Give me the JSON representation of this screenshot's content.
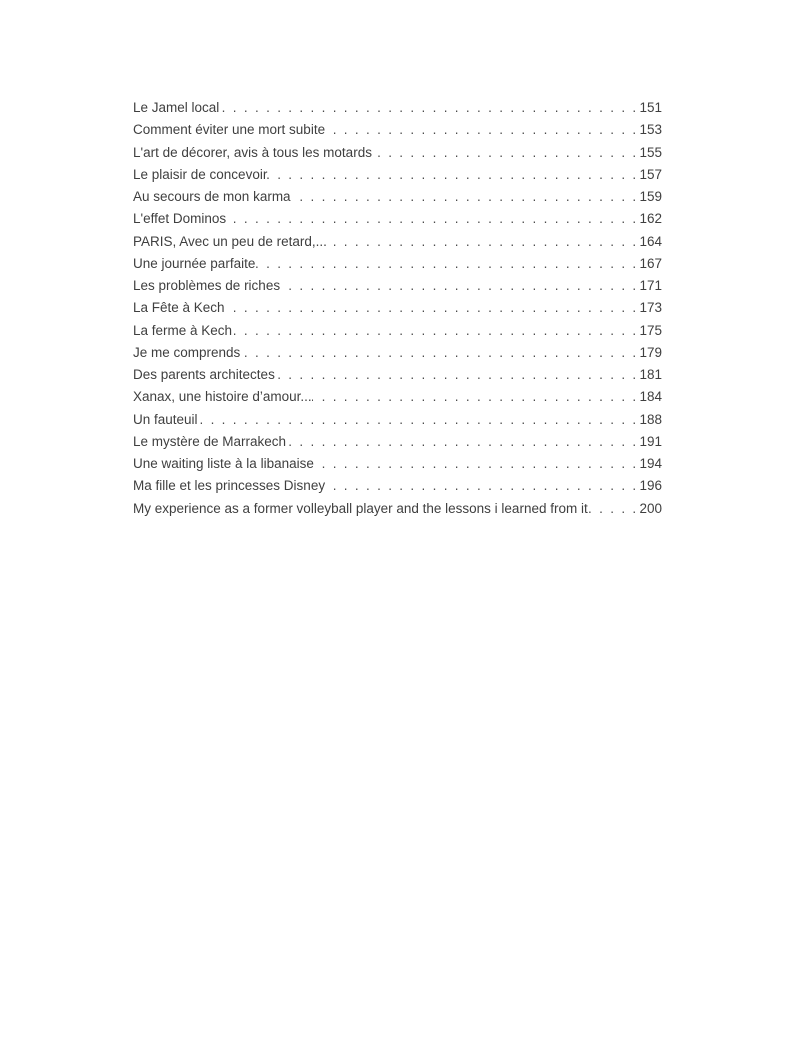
{
  "document": {
    "background_color": "#ffffff",
    "text_color": "#3f3f3f"
  },
  "toc": {
    "entries": [
      {
        "title": "Le Jamel local",
        "page": "151"
      },
      {
        "title": "Comment éviter une mort subite",
        "page": "153"
      },
      {
        "title": "L'art de décorer, avis à tous les motards",
        "page": "155"
      },
      {
        "title": "Le plaisir de concevoir",
        "page": "157"
      },
      {
        "title": "Au secours de mon karma",
        "page": "159"
      },
      {
        "title": "L'effet Dominos",
        "page": "162"
      },
      {
        "title": "PARIS, Avec un peu de retard,...",
        "page": "164"
      },
      {
        "title": "Une journée parfaite",
        "page": "167"
      },
      {
        "title": "Les problèmes de riches",
        "page": "171"
      },
      {
        "title": "La Fête à Kech",
        "page": "173"
      },
      {
        "title": "La ferme à Kech",
        "page": "175"
      },
      {
        "title": "Je me comprends",
        "page": "179"
      },
      {
        "title": "Des parents architectes",
        "page": "181"
      },
      {
        "title": "Xanax, une histoire d’amour...",
        "page": "184"
      },
      {
        "title": "Un fauteuil",
        "page": "188"
      },
      {
        "title": "Le mystère de Marrakech",
        "page": "191"
      },
      {
        "title": "Une waiting liste à la libanaise",
        "page": "194"
      },
      {
        "title": "Ma fille et les princesses Disney",
        "page": "196"
      },
      {
        "title": "My experience as a former volleyball player and the lessons i learned from it",
        "page": "200"
      }
    ]
  }
}
